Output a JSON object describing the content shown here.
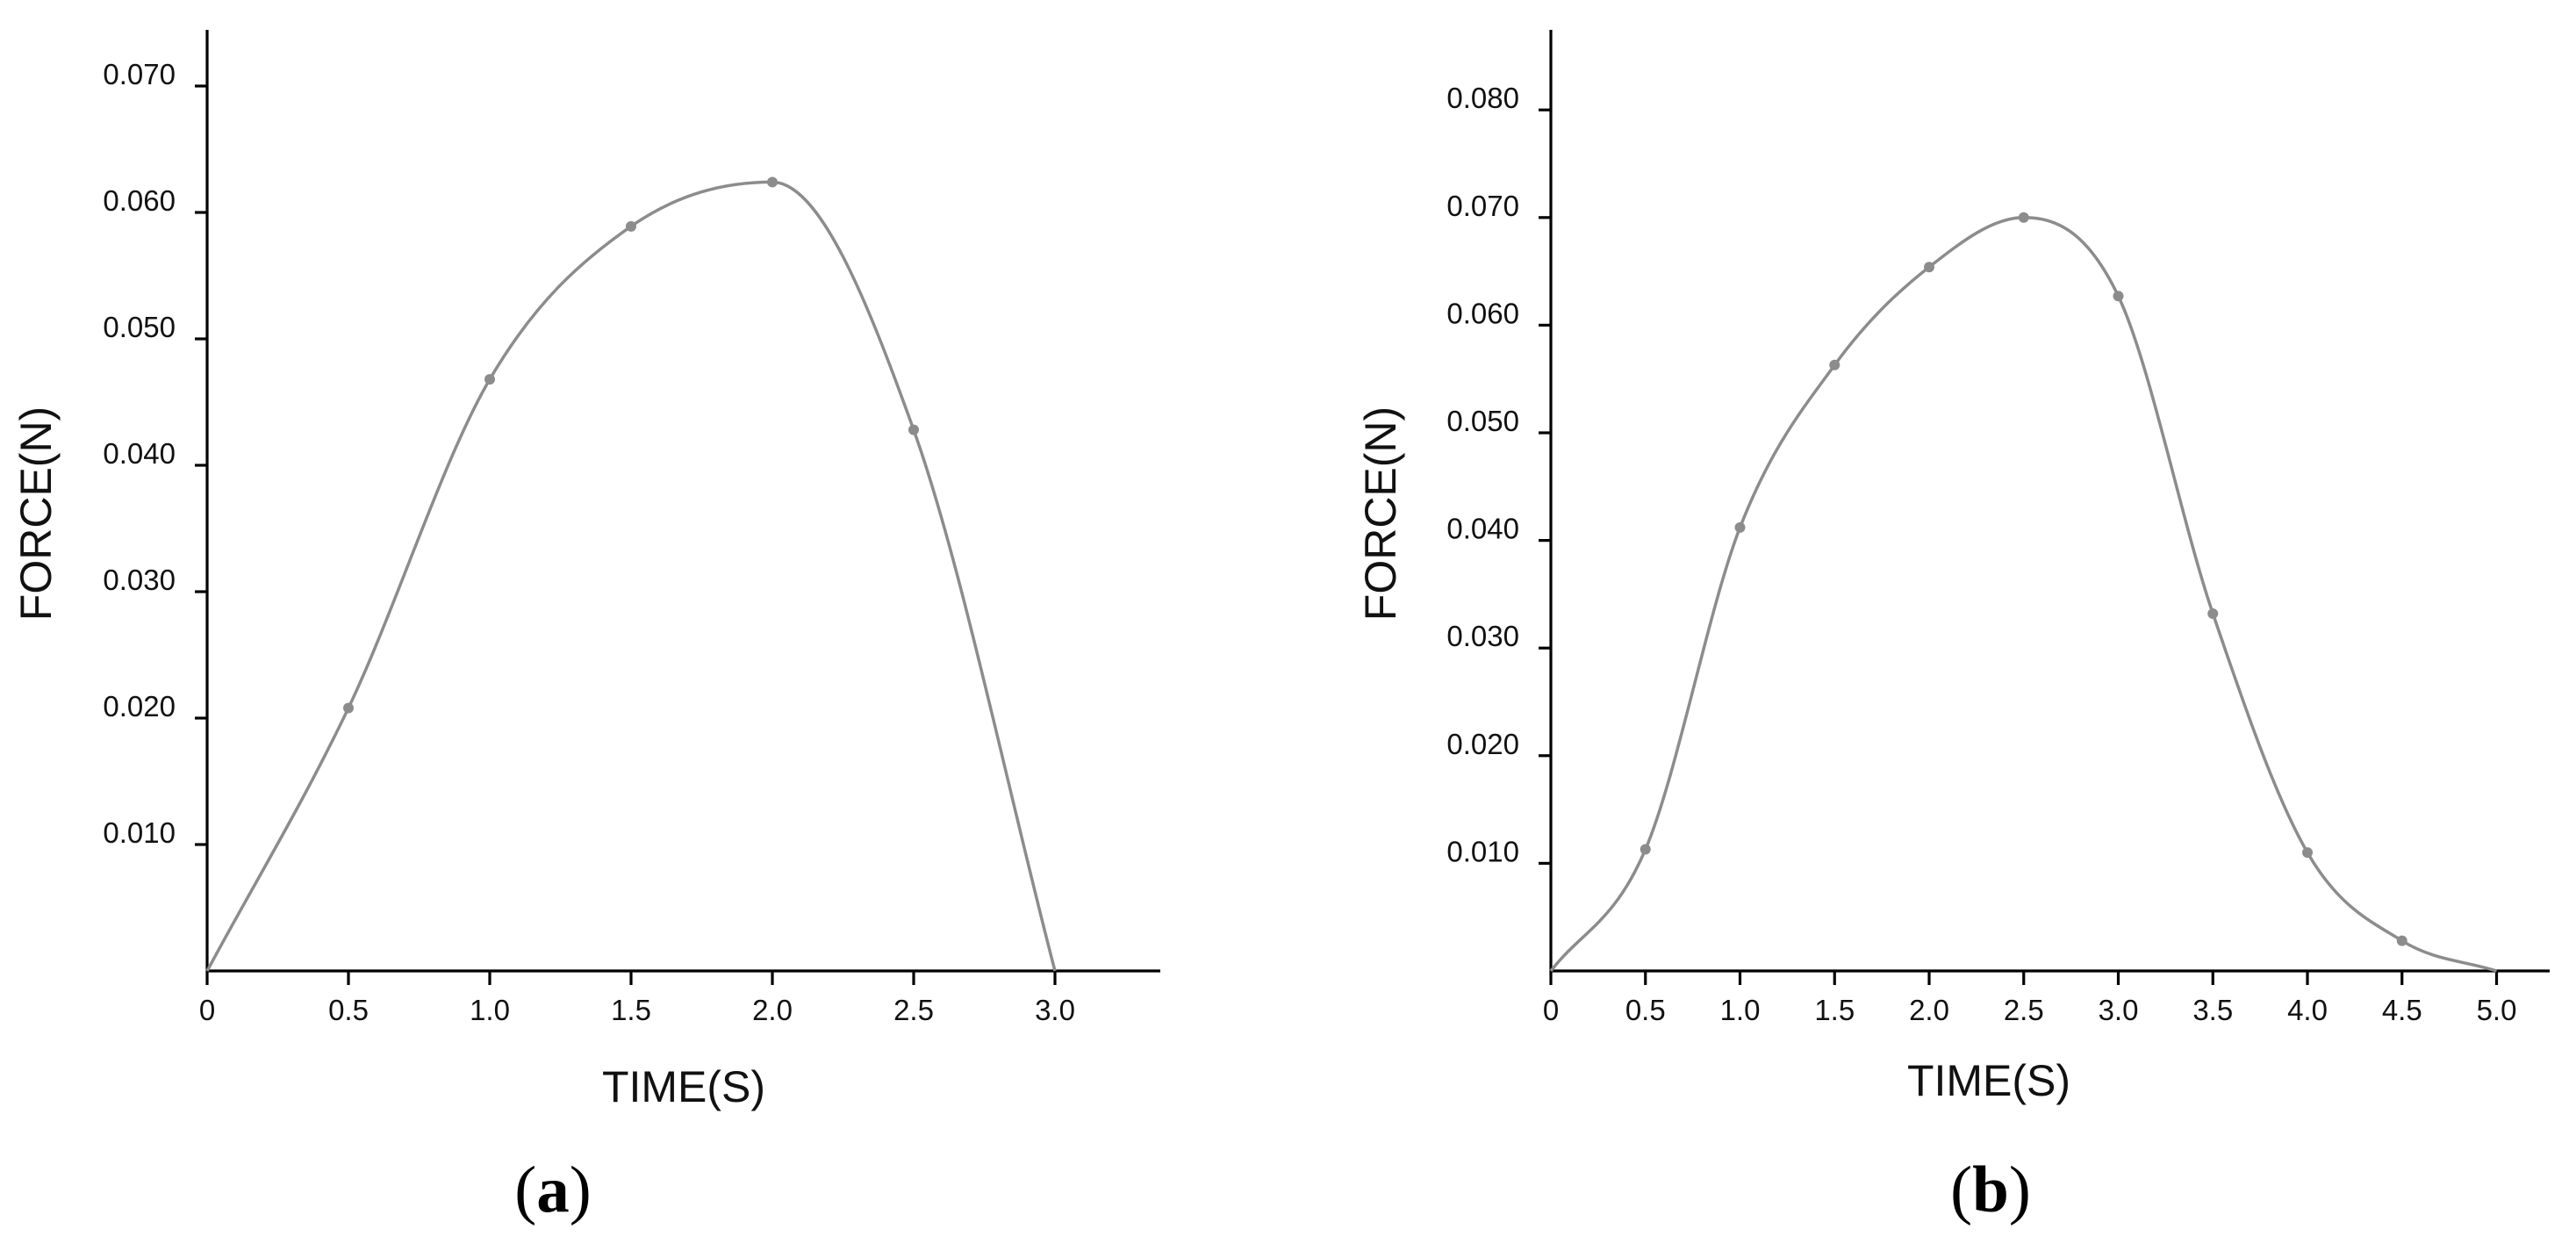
{
  "chart_data": [
    {
      "type": "line",
      "caption": "(a)",
      "caption_letter": "a",
      "xlabel": "TIME(S)",
      "ylabel": "FORCE(N)",
      "xlim": [
        0,
        3.35
      ],
      "ylim": [
        0,
        0.075
      ],
      "x_ticks": [
        0,
        0.5,
        1.0,
        1.5,
        2.0,
        2.5,
        3.0
      ],
      "x_tick_labels": [
        "0",
        "0.5",
        "1.0",
        "1.5",
        "2.0",
        "2.5",
        "3.0"
      ],
      "y_ticks": [
        0.01,
        0.02,
        0.03,
        0.04,
        0.05,
        0.06,
        0.07
      ],
      "y_tick_labels": [
        "0.010",
        "0.020",
        "0.030",
        "0.040",
        "0.050",
        "0.060",
        "0.070"
      ],
      "grid": false,
      "color": "#8c8c8c",
      "series": [
        {
          "x": [
            0,
            0.5,
            1.0,
            1.5,
            2.0,
            2.5,
            3.0
          ],
          "y": [
            0.0,
            0.0208,
            0.0468,
            0.0589,
            0.0624,
            0.0428,
            0.0
          ],
          "markers": [
            false,
            true,
            true,
            true,
            true,
            true,
            false
          ]
        }
      ]
    },
    {
      "type": "line",
      "caption": "(b)",
      "caption_letter": "b",
      "xlabel": "TIME(S)",
      "ylabel": "FORCE(N)",
      "xlim": [
        0,
        5.3
      ],
      "ylim": [
        0,
        0.088
      ],
      "x_ticks": [
        0,
        0.5,
        1.0,
        1.5,
        2.0,
        2.5,
        3.0,
        3.5,
        4.0,
        4.5,
        5.0
      ],
      "x_tick_labels": [
        "0",
        "0.5",
        "1.0",
        "1.5",
        "2.0",
        "2.5",
        "3.0",
        "3.5",
        "4.0",
        "4.5",
        "5.0"
      ],
      "y_ticks": [
        0.01,
        0.02,
        0.03,
        0.04,
        0.05,
        0.06,
        0.07,
        0.08
      ],
      "y_tick_labels": [
        "0.010",
        "0.020",
        "0.030",
        "0.040",
        "0.050",
        "0.060",
        "0.070",
        "0.080"
      ],
      "grid": false,
      "color": "#8c8c8c",
      "series": [
        {
          "x": [
            0,
            0.5,
            1.0,
            1.5,
            2.0,
            2.5,
            3.0,
            3.5,
            4.0,
            4.5,
            5.0
          ],
          "y": [
            0.0,
            0.0113,
            0.0412,
            0.0563,
            0.0654,
            0.07,
            0.0627,
            0.0332,
            0.011,
            0.0028,
            0.0
          ],
          "markers": [
            false,
            true,
            true,
            true,
            true,
            true,
            true,
            true,
            true,
            true,
            false
          ]
        }
      ]
    }
  ]
}
